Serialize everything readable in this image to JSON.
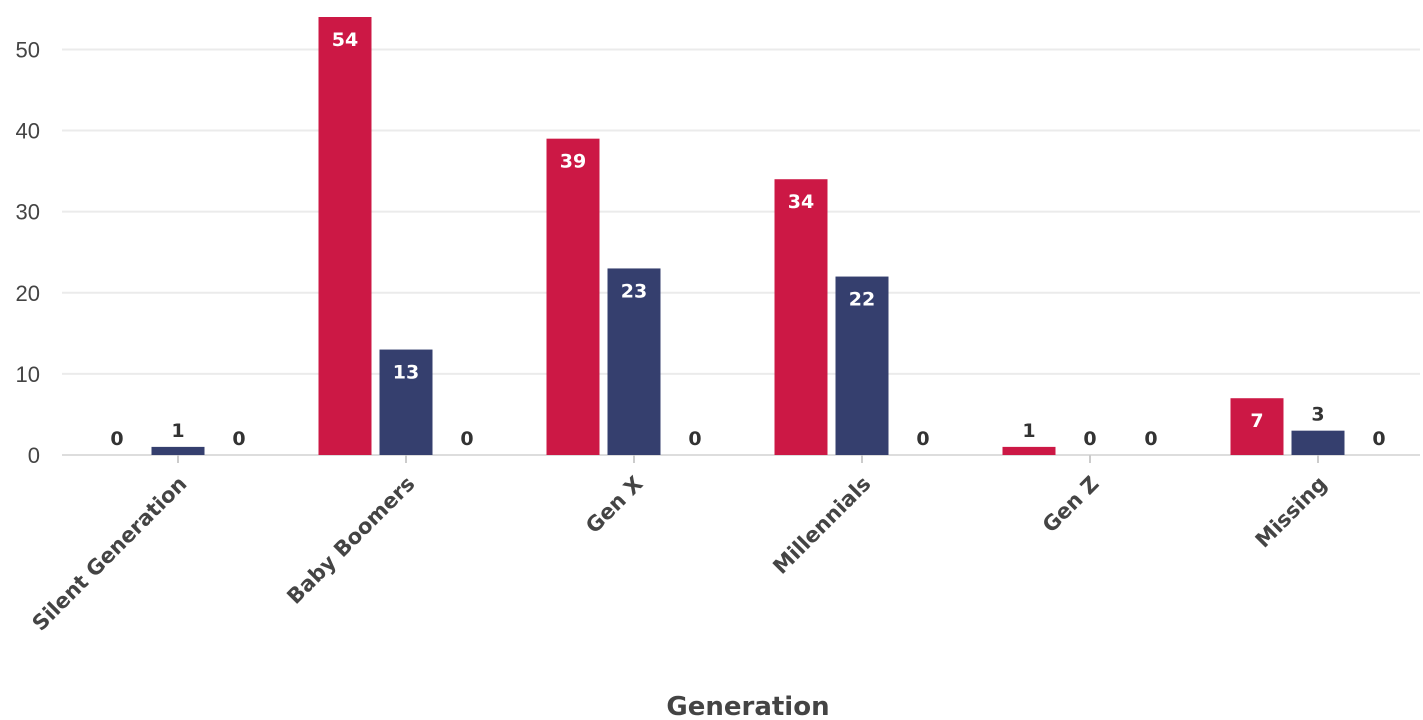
{
  "chart_data": {
    "type": "bar",
    "categories": [
      "Silent Generation",
      "Baby Boomers",
      "Gen X",
      "Millennials",
      "Gen Z",
      "Missing"
    ],
    "series": [
      {
        "values": [
          0,
          54,
          39,
          34,
          1,
          7
        ],
        "color": "#cc1845"
      },
      {
        "values": [
          1,
          13,
          23,
          22,
          0,
          3
        ],
        "color": "#353f6e"
      },
      {
        "values": [
          0,
          0,
          0,
          0,
          0,
          0
        ],
        "color": "#7a7a7a"
      }
    ],
    "xlabel": "Generation",
    "ylabel": "",
    "ylim": [
      0,
      54
    ],
    "yticks": [
      0,
      10,
      20,
      30,
      40,
      50
    ],
    "grid": true,
    "data_labels": true
  }
}
